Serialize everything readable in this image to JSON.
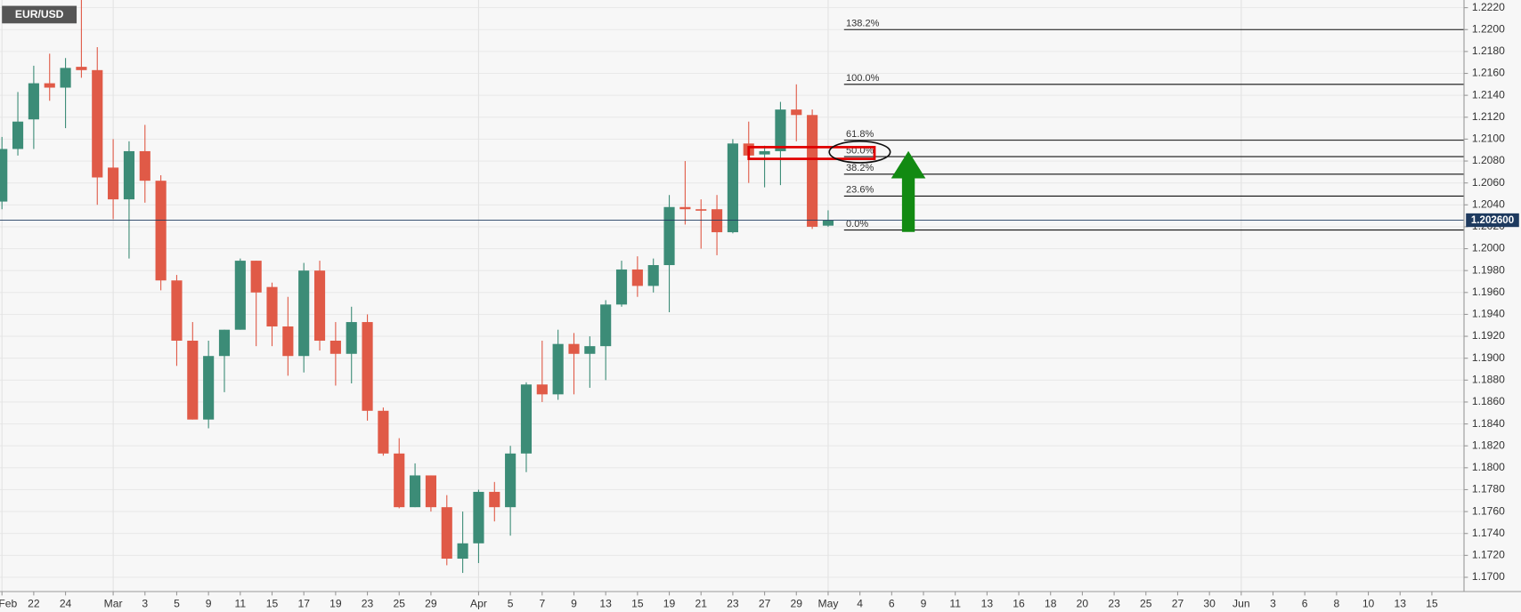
{
  "chart_data": {
    "type": "candlestick",
    "title": "EUR/USD",
    "categories": [
      "Feb",
      null,
      "22",
      null,
      "24",
      null,
      null,
      "Mar",
      null,
      "3",
      null,
      "5",
      null,
      "9",
      null,
      "11",
      null,
      "15",
      null,
      "17",
      null,
      "19",
      null,
      "23",
      null,
      "25",
      null,
      "29",
      null,
      null,
      "Apr",
      null,
      "5",
      null,
      "7",
      null,
      "9",
      null,
      "13",
      null,
      "15",
      null,
      "19",
      null,
      "21",
      null,
      "23",
      null,
      "27",
      null,
      "29",
      null,
      "May",
      null,
      "4",
      null,
      "6",
      null,
      "9",
      null,
      "11",
      null,
      "13",
      null,
      "16",
      null,
      "18",
      null,
      "20",
      null,
      "23",
      null,
      "25",
      null,
      "27",
      null,
      "30",
      null,
      "Jun",
      null,
      "3",
      null,
      "6",
      null,
      "8",
      null,
      "10",
      null,
      "13",
      null,
      "15",
      null
    ],
    "open": [
      1.2043,
      1.2091,
      1.2118,
      1.2151,
      1.2147,
      1.2166,
      1.2163,
      1.2074,
      1.2045,
      1.2089,
      1.2062,
      1.1971,
      1.1916,
      1.1844,
      1.1902,
      1.1926,
      1.1989,
      1.1965,
      1.1929,
      1.1902,
      1.198,
      1.1916,
      1.1904,
      1.1933,
      1.1852,
      1.1813,
      1.1764,
      1.1793,
      1.1764,
      1.1717,
      1.1731,
      1.1778,
      1.1764,
      1.1813,
      1.1876,
      1.1867,
      1.1913,
      1.1904,
      1.1911,
      1.1949,
      1.1981,
      1.1966,
      1.1985,
      1.2038,
      1.2036,
      1.2036,
      1.2015,
      1.2096,
      1.2086,
      1.2089,
      1.2127,
      1.2122,
      1.2021,
      null,
      null,
      null,
      null,
      null,
      null,
      null,
      null,
      null,
      null,
      null,
      null,
      null,
      null,
      null,
      null,
      null,
      null,
      null,
      null,
      null,
      null,
      null,
      null,
      null,
      null,
      null,
      null,
      null,
      null,
      null,
      null,
      null,
      null,
      null,
      null,
      null,
      null,
      null
    ],
    "high": [
      1.2102,
      1.2143,
      1.2167,
      1.2178,
      1.2174,
      1.2227,
      1.2184,
      1.21,
      1.2098,
      1.2113,
      1.2067,
      1.1976,
      1.1933,
      1.1916,
      1.1926,
      1.1991,
      1.1989,
      1.1969,
      1.1956,
      1.1987,
      1.1989,
      1.1933,
      1.1947,
      1.194,
      1.1855,
      1.1827,
      1.1804,
      1.1793,
      1.1775,
      1.176,
      1.178,
      1.1787,
      1.182,
      1.1878,
      1.1916,
      1.1926,
      1.1923,
      1.192,
      1.1953,
      1.1989,
      1.1993,
      1.1991,
      1.2049,
      1.208,
      1.2045,
      1.2049,
      1.21,
      1.2116,
      1.2094,
      1.2134,
      1.215,
      1.2127,
      1.2035,
      null,
      null,
      null,
      null,
      null,
      null,
      null,
      null,
      null,
      null,
      null,
      null,
      null,
      null,
      null,
      null,
      null,
      null,
      null,
      null,
      null,
      null,
      null,
      null,
      null,
      null,
      null,
      null,
      null,
      null,
      null,
      null,
      null,
      null,
      null,
      null,
      null,
      null,
      null
    ],
    "low": [
      1.2036,
      1.2085,
      1.2091,
      1.2135,
      1.211,
      1.2156,
      1.204,
      1.2027,
      1.1991,
      1.2042,
      1.1962,
      1.1893,
      1.1844,
      1.1836,
      1.1869,
      1.1926,
      1.1911,
      1.1911,
      1.1884,
      1.1887,
      1.1907,
      1.1875,
      1.1877,
      1.1843,
      1.1811,
      1.1763,
      1.1764,
      1.176,
      1.1711,
      1.1704,
      1.1713,
      1.1751,
      1.1738,
      1.1796,
      1.186,
      1.1862,
      1.1867,
      1.1873,
      1.188,
      1.1947,
      1.1956,
      1.196,
      1.1942,
      1.2022,
      1.2,
      1.1994,
      1.2014,
      1.206,
      1.2056,
      1.2058,
      1.2098,
      1.2018,
      1.202,
      null,
      null,
      null,
      null,
      null,
      null,
      null,
      null,
      null,
      null,
      null,
      null,
      null,
      null,
      null,
      null,
      null,
      null,
      null,
      null,
      null,
      null,
      null,
      null,
      null,
      null,
      null,
      null,
      null,
      null,
      null,
      null,
      null,
      null,
      null,
      null,
      null,
      null,
      null
    ],
    "close": [
      1.2091,
      1.2116,
      1.2151,
      1.2147,
      1.2165,
      1.2163,
      1.2065,
      1.2045,
      1.2089,
      1.2062,
      1.1971,
      1.1916,
      1.1844,
      1.1902,
      1.1926,
      1.1989,
      1.196,
      1.1929,
      1.1902,
      1.198,
      1.1916,
      1.1904,
      1.1933,
      1.1852,
      1.1813,
      1.1764,
      1.1793,
      1.1764,
      1.1717,
      1.1731,
      1.1778,
      1.1764,
      1.1813,
      1.1876,
      1.1867,
      1.1913,
      1.1904,
      1.1911,
      1.1949,
      1.1981,
      1.1966,
      1.1985,
      1.2038,
      1.2036,
      1.2035,
      1.2015,
      1.2096,
      1.2085,
      1.2089,
      1.2127,
      1.2122,
      1.202,
      1.2026,
      null,
      null,
      null,
      null,
      null,
      null,
      null,
      null,
      null,
      null,
      null,
      null,
      null,
      null,
      null,
      null,
      null,
      null,
      null,
      null,
      null,
      null,
      null,
      null,
      null,
      null,
      null,
      null,
      null,
      null,
      null,
      null,
      null,
      null,
      null,
      null,
      null,
      null,
      null
    ],
    "up_color": "#3c8c77",
    "down_color": "#e05a47",
    "ylim": [
      1.1687,
      1.2227
    ],
    "yticks": [
      {
        "value": 1.17,
        "label": "1.1700"
      },
      {
        "value": 1.172,
        "label": "1.1720"
      },
      {
        "value": 1.174,
        "label": "1.1740"
      },
      {
        "value": 1.176,
        "label": "1.1760"
      },
      {
        "value": 1.178,
        "label": "1.1780"
      },
      {
        "value": 1.18,
        "label": "1.1800"
      },
      {
        "value": 1.182,
        "label": "1.1820"
      },
      {
        "value": 1.184,
        "label": "1.1840"
      },
      {
        "value": 1.186,
        "label": "1.1860"
      },
      {
        "value": 1.188,
        "label": "1.1880"
      },
      {
        "value": 1.19,
        "label": "1.1900"
      },
      {
        "value": 1.192,
        "label": "1.1920"
      },
      {
        "value": 1.194,
        "label": "1.1940"
      },
      {
        "value": 1.196,
        "label": "1.1960"
      },
      {
        "value": 1.198,
        "label": "1.1980"
      },
      {
        "value": 1.2,
        "label": "1.2000"
      },
      {
        "value": 1.202,
        "label": "1.2020"
      },
      {
        "value": 1.204,
        "label": "1.2040"
      },
      {
        "value": 1.206,
        "label": "1.2060"
      },
      {
        "value": 1.208,
        "label": "1.2080"
      },
      {
        "value": 1.21,
        "label": "1.2100"
      },
      {
        "value": 1.212,
        "label": "1.2120"
      },
      {
        "value": 1.214,
        "label": "1.2140"
      },
      {
        "value": 1.216,
        "label": "1.2160"
      },
      {
        "value": 1.218,
        "label": "1.2180"
      },
      {
        "value": 1.22,
        "label": "1.2200"
      },
      {
        "value": 1.222,
        "label": "1.2220"
      }
    ],
    "grid": true,
    "current_price": {
      "value": 1.2026,
      "label": "1.202600"
    },
    "fibonacci": [
      {
        "label": "138.2%",
        "value": 1.22
      },
      {
        "label": "100.0%",
        "value": 1.215
      },
      {
        "label": "61.8%",
        "value": 1.2099
      },
      {
        "label": "50.0%",
        "value": 1.2084
      },
      {
        "label": "38.2%",
        "value": 1.2068
      },
      {
        "label": "23.6%",
        "value": 1.2048
      },
      {
        "label": "0.0%",
        "value": 1.2017
      }
    ]
  }
}
